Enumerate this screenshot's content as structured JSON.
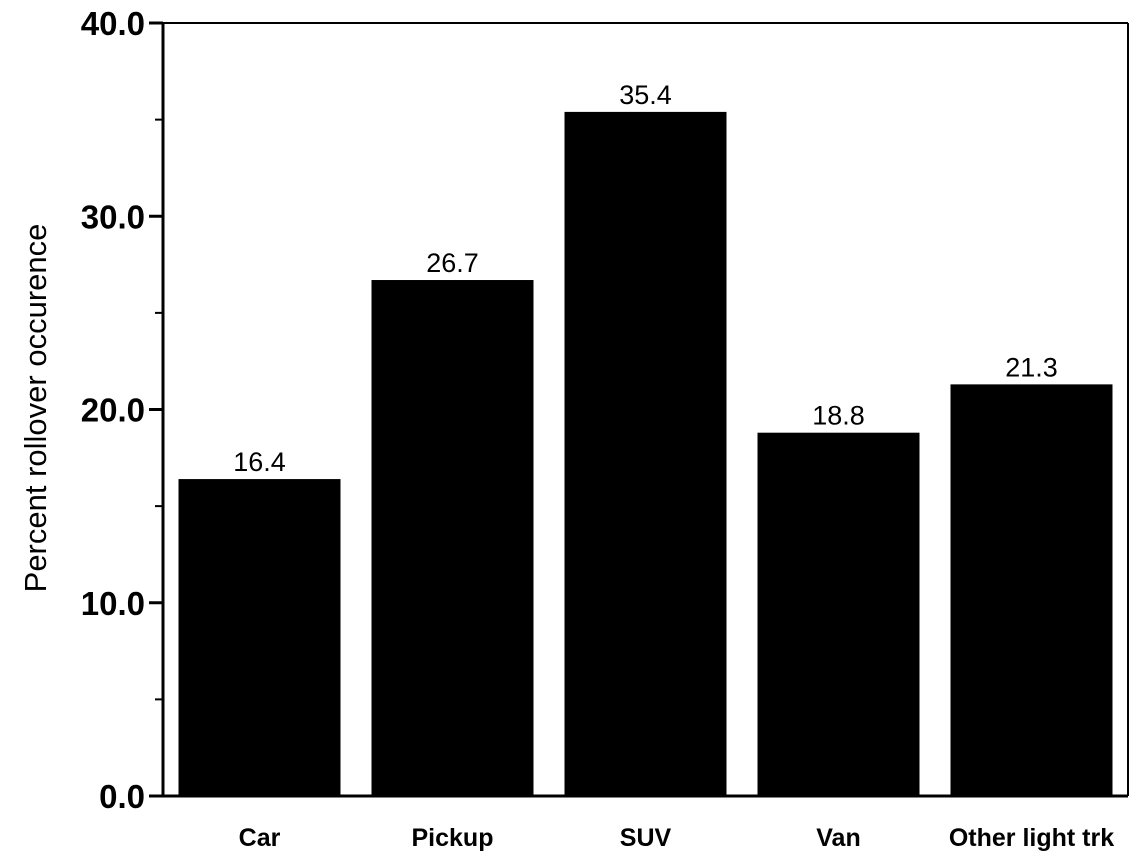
{
  "chart_data": {
    "type": "bar",
    "categories": [
      "Car",
      "Pickup",
      "SUV",
      "Van",
      "Other light trk"
    ],
    "values": [
      16.4,
      26.7,
      35.4,
      18.8,
      21.3
    ],
    "data_labels": [
      "16.4",
      "26.7",
      "35.4",
      "18.8",
      "21.3"
    ],
    "ylabel": "Percent rollover occurence",
    "ylim": [
      0,
      40
    ],
    "y_ticks": [
      0,
      10,
      20,
      30,
      40
    ],
    "y_tick_labels": [
      "0.0",
      "10.0",
      "20.0",
      "30.0",
      "40.0"
    ],
    "grid": false,
    "legend": "none",
    "bar_color": "#000000"
  }
}
